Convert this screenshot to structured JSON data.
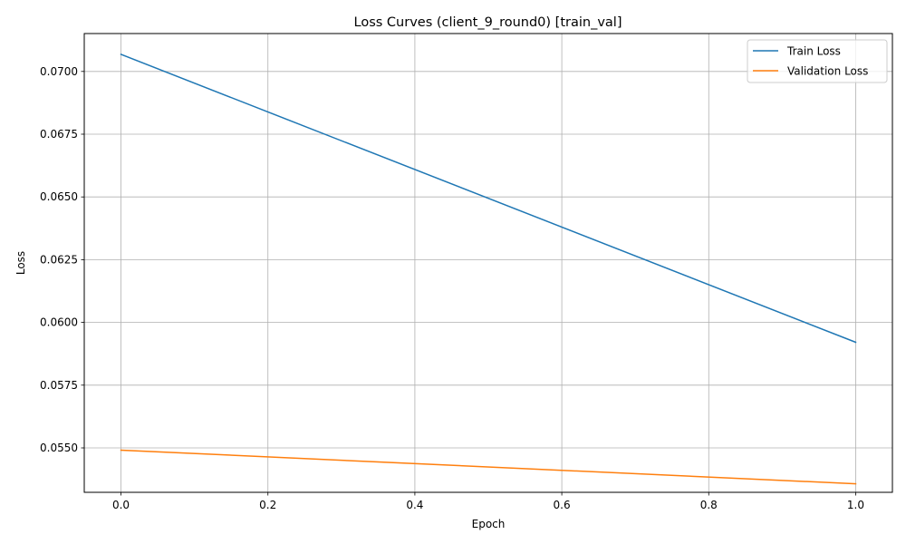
{
  "chart_data": {
    "type": "line",
    "title": "Loss Curves (client_9_round0) [train_val]",
    "xlabel": "Epoch",
    "ylabel": "Loss",
    "xlim": [
      -0.05,
      1.05
    ],
    "ylim": [
      0.05323,
      0.07151
    ],
    "xticks": [
      {
        "value": 0.0,
        "label": "0.0"
      },
      {
        "value": 0.2,
        "label": "0.2"
      },
      {
        "value": 0.4,
        "label": "0.4"
      },
      {
        "value": 0.6,
        "label": "0.6"
      },
      {
        "value": 0.8,
        "label": "0.8"
      },
      {
        "value": 1.0,
        "label": "1.0"
      }
    ],
    "yticks": [
      {
        "value": 0.055,
        "label": "0.0550"
      },
      {
        "value": 0.0575,
        "label": "0.0575"
      },
      {
        "value": 0.06,
        "label": "0.0600"
      },
      {
        "value": 0.0625,
        "label": "0.0625"
      },
      {
        "value": 0.065,
        "label": "0.0650"
      },
      {
        "value": 0.0675,
        "label": "0.0675"
      },
      {
        "value": 0.07,
        "label": "0.0700"
      }
    ],
    "grid": true,
    "legend_position": "top-right",
    "x": [
      0.0,
      1.0
    ],
    "series": [
      {
        "name": "Train Loss",
        "color": "#1f77b4",
        "values": [
          0.07068,
          0.05921
        ]
      },
      {
        "name": "Validation Loss",
        "color": "#ff7f0e",
        "values": [
          0.05491,
          0.05357
        ]
      }
    ]
  }
}
